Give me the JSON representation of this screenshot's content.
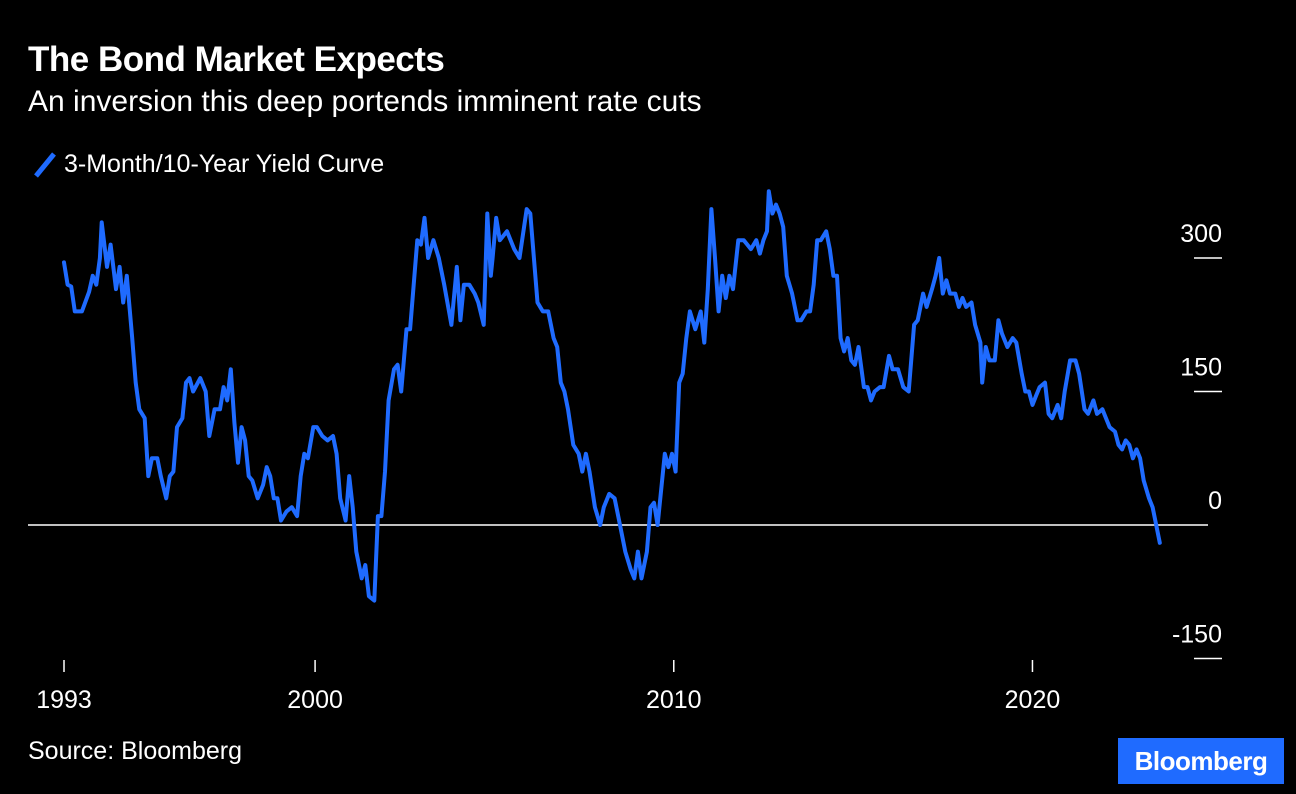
{
  "title": "The Bond Market Expects",
  "subtitle": "An inversion this deep portends imminent rate cuts",
  "source": "Source: Bloomberg",
  "logo": "Bloomberg",
  "colors": {
    "series": "#1f6bff",
    "background": "#000000",
    "text": "#ffffff"
  },
  "chart_data": {
    "type": "line",
    "title": "The Bond Market Expects",
    "subtitle": "An inversion this deep portends imminent rate cuts",
    "xlabel": "",
    "ylabel": "",
    "xlim": [
      1993,
      2023.5
    ],
    "ylim": [
      -185,
      380
    ],
    "x_ticks": [
      1993,
      2000,
      2010,
      2020
    ],
    "y_ticks": [
      300,
      150,
      0,
      -150
    ],
    "grid": false,
    "legend_position": "top-left",
    "series": [
      {
        "name": "3-Month/10-Year Yield Curve",
        "color": "#1f6bff",
        "points": [
          [
            1993.0,
            295
          ],
          [
            1993.1,
            270
          ],
          [
            1993.2,
            268
          ],
          [
            1993.3,
            240
          ],
          [
            1993.5,
            240
          ],
          [
            1993.7,
            262
          ],
          [
            1993.8,
            280
          ],
          [
            1993.9,
            270
          ],
          [
            1994.0,
            300
          ],
          [
            1994.05,
            340
          ],
          [
            1994.2,
            290
          ],
          [
            1994.3,
            315
          ],
          [
            1994.45,
            265
          ],
          [
            1994.55,
            290
          ],
          [
            1994.65,
            250
          ],
          [
            1994.75,
            280
          ],
          [
            1994.9,
            210
          ],
          [
            1995.0,
            160
          ],
          [
            1995.1,
            130
          ],
          [
            1995.25,
            120
          ],
          [
            1995.35,
            55
          ],
          [
            1995.45,
            75
          ],
          [
            1995.6,
            75
          ],
          [
            1995.7,
            55
          ],
          [
            1995.85,
            30
          ],
          [
            1995.95,
            55
          ],
          [
            1996.05,
            60
          ],
          [
            1996.15,
            110
          ],
          [
            1996.3,
            120
          ],
          [
            1996.4,
            160
          ],
          [
            1996.5,
            165
          ],
          [
            1996.6,
            150
          ],
          [
            1996.8,
            165
          ],
          [
            1996.95,
            150
          ],
          [
            1997.05,
            100
          ],
          [
            1997.2,
            130
          ],
          [
            1997.35,
            130
          ],
          [
            1997.45,
            155
          ],
          [
            1997.55,
            140
          ],
          [
            1997.65,
            175
          ],
          [
            1997.75,
            115
          ],
          [
            1997.85,
            70
          ],
          [
            1997.95,
            110
          ],
          [
            1998.05,
            95
          ],
          [
            1998.15,
            55
          ],
          [
            1998.25,
            50
          ],
          [
            1998.4,
            30
          ],
          [
            1998.55,
            45
          ],
          [
            1998.65,
            65
          ],
          [
            1998.75,
            55
          ],
          [
            1998.85,
            30
          ],
          [
            1998.95,
            30
          ],
          [
            1999.05,
            5
          ],
          [
            1999.2,
            15
          ],
          [
            1999.35,
            20
          ],
          [
            1999.5,
            10
          ],
          [
            1999.6,
            55
          ],
          [
            1999.7,
            80
          ],
          [
            1999.8,
            75
          ],
          [
            1999.95,
            110
          ],
          [
            2000.05,
            110
          ],
          [
            2000.2,
            100
          ],
          [
            2000.35,
            95
          ],
          [
            2000.5,
            100
          ],
          [
            2000.6,
            80
          ],
          [
            2000.7,
            30
          ],
          [
            2000.85,
            5
          ],
          [
            2000.95,
            55
          ],
          [
            2001.05,
            20
          ],
          [
            2001.15,
            -30
          ],
          [
            2001.3,
            -60
          ],
          [
            2001.4,
            -45
          ],
          [
            2001.5,
            -80
          ],
          [
            2001.65,
            -85
          ],
          [
            2001.75,
            10
          ],
          [
            2001.85,
            10
          ],
          [
            2001.95,
            60
          ],
          [
            2002.05,
            140
          ],
          [
            2002.2,
            175
          ],
          [
            2002.3,
            180
          ],
          [
            2002.4,
            150
          ],
          [
            2002.55,
            220
          ],
          [
            2002.65,
            220
          ],
          [
            2002.75,
            270
          ],
          [
            2002.85,
            320
          ],
          [
            2002.95,
            315
          ],
          [
            2003.05,
            345
          ],
          [
            2003.15,
            300
          ],
          [
            2003.3,
            320
          ],
          [
            2003.45,
            300
          ],
          [
            2003.6,
            270
          ],
          [
            2003.8,
            225
          ],
          [
            2003.95,
            290
          ],
          [
            2004.05,
            230
          ],
          [
            2004.15,
            270
          ],
          [
            2004.3,
            270
          ],
          [
            2004.45,
            260
          ],
          [
            2004.55,
            250
          ],
          [
            2004.7,
            225
          ],
          [
            2004.8,
            350
          ],
          [
            2004.9,
            280
          ],
          [
            2004.95,
            300
          ],
          [
            2005.05,
            345
          ],
          [
            2005.15,
            320
          ],
          [
            2005.35,
            330
          ],
          [
            2005.45,
            320
          ],
          [
            2005.55,
            310
          ],
          [
            2005.7,
            300
          ],
          [
            2005.9,
            355
          ],
          [
            2006.0,
            350
          ],
          [
            2006.1,
            300
          ],
          [
            2006.2,
            250
          ],
          [
            2006.35,
            240
          ],
          [
            2006.5,
            240
          ],
          [
            2006.65,
            210
          ],
          [
            2006.75,
            200
          ],
          [
            2006.85,
            160
          ],
          [
            2006.95,
            150
          ],
          [
            2007.05,
            130
          ],
          [
            2007.2,
            90
          ],
          [
            2007.35,
            80
          ],
          [
            2007.45,
            60
          ],
          [
            2007.55,
            80
          ],
          [
            2007.65,
            60
          ],
          [
            2007.8,
            20
          ],
          [
            2007.95,
            0
          ],
          [
            2008.05,
            20
          ],
          [
            2008.2,
            35
          ],
          [
            2008.35,
            30
          ],
          [
            2008.5,
            0
          ],
          [
            2008.65,
            -30
          ],
          [
            2008.8,
            -50
          ],
          [
            2008.9,
            -60
          ],
          [
            2009.0,
            -30
          ],
          [
            2009.1,
            -60
          ],
          [
            2009.25,
            -30
          ],
          [
            2009.35,
            20
          ],
          [
            2009.45,
            25
          ],
          [
            2009.55,
            0
          ],
          [
            2009.65,
            40
          ],
          [
            2009.75,
            80
          ],
          [
            2009.85,
            65
          ],
          [
            2009.95,
            80
          ],
          [
            2010.05,
            60
          ],
          [
            2010.15,
            160
          ],
          [
            2010.25,
            170
          ],
          [
            2010.35,
            210
          ],
          [
            2010.45,
            240
          ],
          [
            2010.6,
            220
          ],
          [
            2010.75,
            240
          ],
          [
            2010.85,
            205
          ],
          [
            2010.95,
            265
          ],
          [
            2011.05,
            355
          ],
          [
            2011.15,
            300
          ],
          [
            2011.25,
            240
          ],
          [
            2011.35,
            280
          ],
          [
            2011.45,
            255
          ],
          [
            2011.55,
            280
          ],
          [
            2011.65,
            265
          ],
          [
            2011.8,
            320
          ],
          [
            2011.95,
            320
          ],
          [
            2012.05,
            315
          ],
          [
            2012.15,
            310
          ],
          [
            2012.3,
            320
          ],
          [
            2012.4,
            305
          ],
          [
            2012.5,
            320
          ],
          [
            2012.6,
            330
          ],
          [
            2012.65,
            375
          ],
          [
            2012.75,
            350
          ],
          [
            2012.85,
            360
          ],
          [
            2012.95,
            350
          ],
          [
            2013.05,
            335
          ],
          [
            2013.15,
            280
          ],
          [
            2013.3,
            260
          ],
          [
            2013.45,
            230
          ],
          [
            2013.55,
            230
          ],
          [
            2013.7,
            240
          ],
          [
            2013.8,
            240
          ],
          [
            2013.9,
            270
          ],
          [
            2014.0,
            320
          ],
          [
            2014.1,
            320
          ],
          [
            2014.25,
            330
          ],
          [
            2014.35,
            310
          ],
          [
            2014.45,
            280
          ],
          [
            2014.55,
            280
          ],
          [
            2014.65,
            210
          ],
          [
            2014.75,
            195
          ],
          [
            2014.85,
            210
          ],
          [
            2014.95,
            185
          ],
          [
            2015.05,
            180
          ],
          [
            2015.15,
            200
          ],
          [
            2015.3,
            155
          ],
          [
            2015.4,
            155
          ],
          [
            2015.5,
            140
          ],
          [
            2015.6,
            150
          ],
          [
            2015.75,
            155
          ],
          [
            2015.85,
            155
          ],
          [
            2016.0,
            190
          ],
          [
            2016.1,
            175
          ],
          [
            2016.25,
            175
          ],
          [
            2016.4,
            155
          ],
          [
            2016.55,
            150
          ],
          [
            2016.7,
            225
          ],
          [
            2016.8,
            230
          ],
          [
            2016.95,
            260
          ],
          [
            2017.05,
            245
          ],
          [
            2017.2,
            265
          ],
          [
            2017.3,
            280
          ],
          [
            2017.4,
            300
          ],
          [
            2017.5,
            260
          ],
          [
            2017.6,
            275
          ],
          [
            2017.7,
            260
          ],
          [
            2017.85,
            260
          ],
          [
            2017.95,
            245
          ],
          [
            2018.05,
            255
          ],
          [
            2018.15,
            245
          ],
          [
            2018.3,
            250
          ],
          [
            2018.4,
            225
          ],
          [
            2018.55,
            205
          ],
          [
            2018.6,
            160
          ],
          [
            2018.7,
            200
          ],
          [
            2018.8,
            185
          ],
          [
            2018.95,
            185
          ],
          [
            2019.05,
            230
          ],
          [
            2019.15,
            215
          ],
          [
            2019.3,
            200
          ],
          [
            2019.45,
            210
          ],
          [
            2019.55,
            205
          ],
          [
            2019.7,
            170
          ],
          [
            2019.8,
            150
          ],
          [
            2019.9,
            150
          ],
          [
            2020.0,
            135
          ],
          [
            2020.1,
            145
          ],
          [
            2020.2,
            155
          ],
          [
            2020.35,
            160
          ],
          [
            2020.45,
            125
          ],
          [
            2020.55,
            120
          ],
          [
            2020.7,
            135
          ],
          [
            2020.8,
            120
          ],
          [
            2020.9,
            150
          ],
          [
            2021.05,
            185
          ],
          [
            2021.2,
            185
          ],
          [
            2021.3,
            170
          ],
          [
            2021.45,
            130
          ],
          [
            2021.55,
            125
          ],
          [
            2021.7,
            140
          ],
          [
            2021.8,
            125
          ],
          [
            2021.95,
            130
          ],
          [
            2022.05,
            120
          ],
          [
            2022.15,
            110
          ],
          [
            2022.3,
            105
          ],
          [
            2022.4,
            90
          ],
          [
            2022.5,
            85
          ],
          [
            2022.6,
            95
          ],
          [
            2022.7,
            90
          ],
          [
            2022.8,
            75
          ],
          [
            2022.9,
            85
          ],
          [
            2023.0,
            75
          ],
          [
            2023.1,
            50
          ],
          [
            2023.25,
            30
          ],
          [
            2023.35,
            20
          ],
          [
            2023.45,
            0
          ],
          [
            2023.55,
            -20
          ]
        ]
      }
    ]
  }
}
